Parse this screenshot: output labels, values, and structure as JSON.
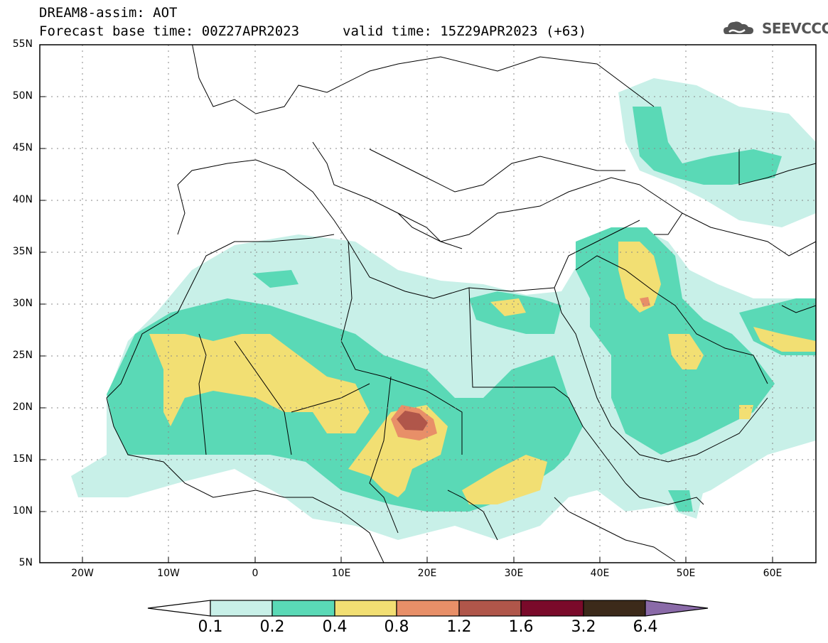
{
  "header": {
    "title": "DREAM8-assim: AOT",
    "base_time": "Forecast base time: 00Z27APR2023",
    "valid_time": "valid time: 15Z29APR2023 (+63)",
    "logo_text": "SEEVCCC"
  },
  "map": {
    "lat_labels": [
      "55N",
      "50N",
      "45N",
      "40N",
      "35N",
      "30N",
      "25N",
      "20N",
      "15N",
      "10N",
      "5N"
    ],
    "lon_labels": [
      "20W",
      "10W",
      "0",
      "10E",
      "20E",
      "30E",
      "40E",
      "50E",
      "60E"
    ],
    "lon_range": [
      -25,
      65
    ],
    "lat_range": [
      5,
      55
    ]
  },
  "colorbar": {
    "levels": [
      "0.1",
      "0.2",
      "0.4",
      "0.8",
      "1.2",
      "1.6",
      "3.2",
      "6.4"
    ],
    "colors": [
      "#c8f0e8",
      "#5ad9b6",
      "#f2df73",
      "#e88f68",
      "#b0564a",
      "#7a0a2a",
      "#3c2a1a",
      "#8a6aa8"
    ]
  }
}
